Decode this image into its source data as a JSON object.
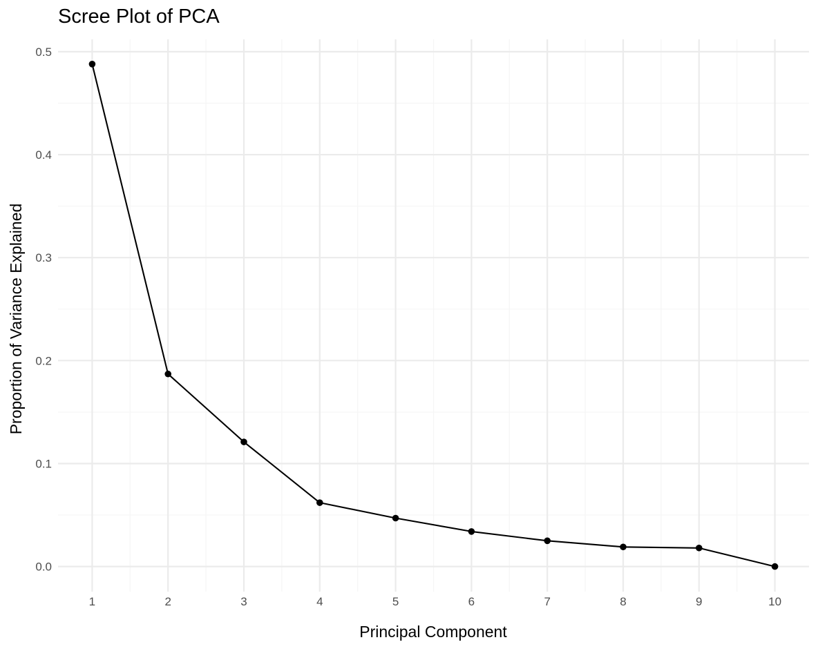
{
  "chart_data": {
    "type": "line",
    "title": "Scree Plot of PCA",
    "xlabel": "Principal Component",
    "ylabel": "Proportion of Variance Explained",
    "x": [
      1,
      2,
      3,
      4,
      5,
      6,
      7,
      8,
      9,
      10
    ],
    "series": [
      {
        "values": [
          0.488,
          0.187,
          0.121,
          0.062,
          0.047,
          0.034,
          0.025,
          0.019,
          0.018,
          0.0
        ]
      }
    ],
    "xlim": [
      0.55,
      10.45
    ],
    "ylim": [
      -0.0244,
      0.512
    ],
    "x_ticks": [
      "1",
      "2",
      "3",
      "4",
      "5",
      "6",
      "7",
      "8",
      "9",
      "10"
    ],
    "y_ticks": [
      "0.0",
      "0.1",
      "0.2",
      "0.3",
      "0.4",
      "0.5"
    ],
    "y_tick_values": [
      0.0,
      0.1,
      0.2,
      0.3,
      0.4,
      0.5
    ],
    "grid": true,
    "legend": "none",
    "colors": {
      "line": "#000000",
      "point": "#000000",
      "grid_major": "#ebebeb",
      "grid_minor": "#f5f5f5",
      "background": "#ffffff"
    }
  }
}
